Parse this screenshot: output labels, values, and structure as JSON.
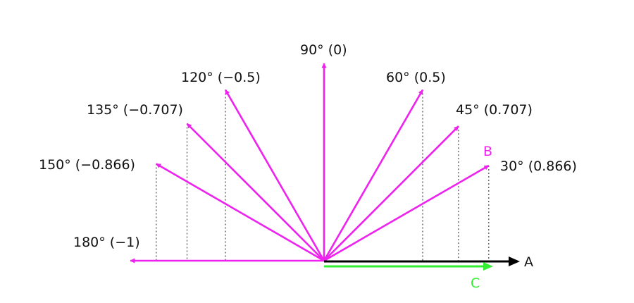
{
  "colors": {
    "vector": "#ee22ee",
    "projection": "#33ee33",
    "reference": "#000000",
    "dotted": "#444444"
  },
  "vectors": [
    {
      "angle_deg": 30,
      "label": "30° (0.866)"
    },
    {
      "angle_deg": 45,
      "label": "45° (0.707)"
    },
    {
      "angle_deg": 60,
      "label": "60° (0.5)"
    },
    {
      "angle_deg": 90,
      "label": "90° (0)"
    },
    {
      "angle_deg": 120,
      "label": "120° (−0.5)"
    },
    {
      "angle_deg": 135,
      "label": "135° (−0.707)"
    },
    {
      "angle_deg": 150,
      "label": "150° (−0.866)"
    },
    {
      "angle_deg": 180,
      "label": "180° (−1)"
    }
  ],
  "labels": {
    "a": "A",
    "b": "B",
    "c": "C"
  }
}
